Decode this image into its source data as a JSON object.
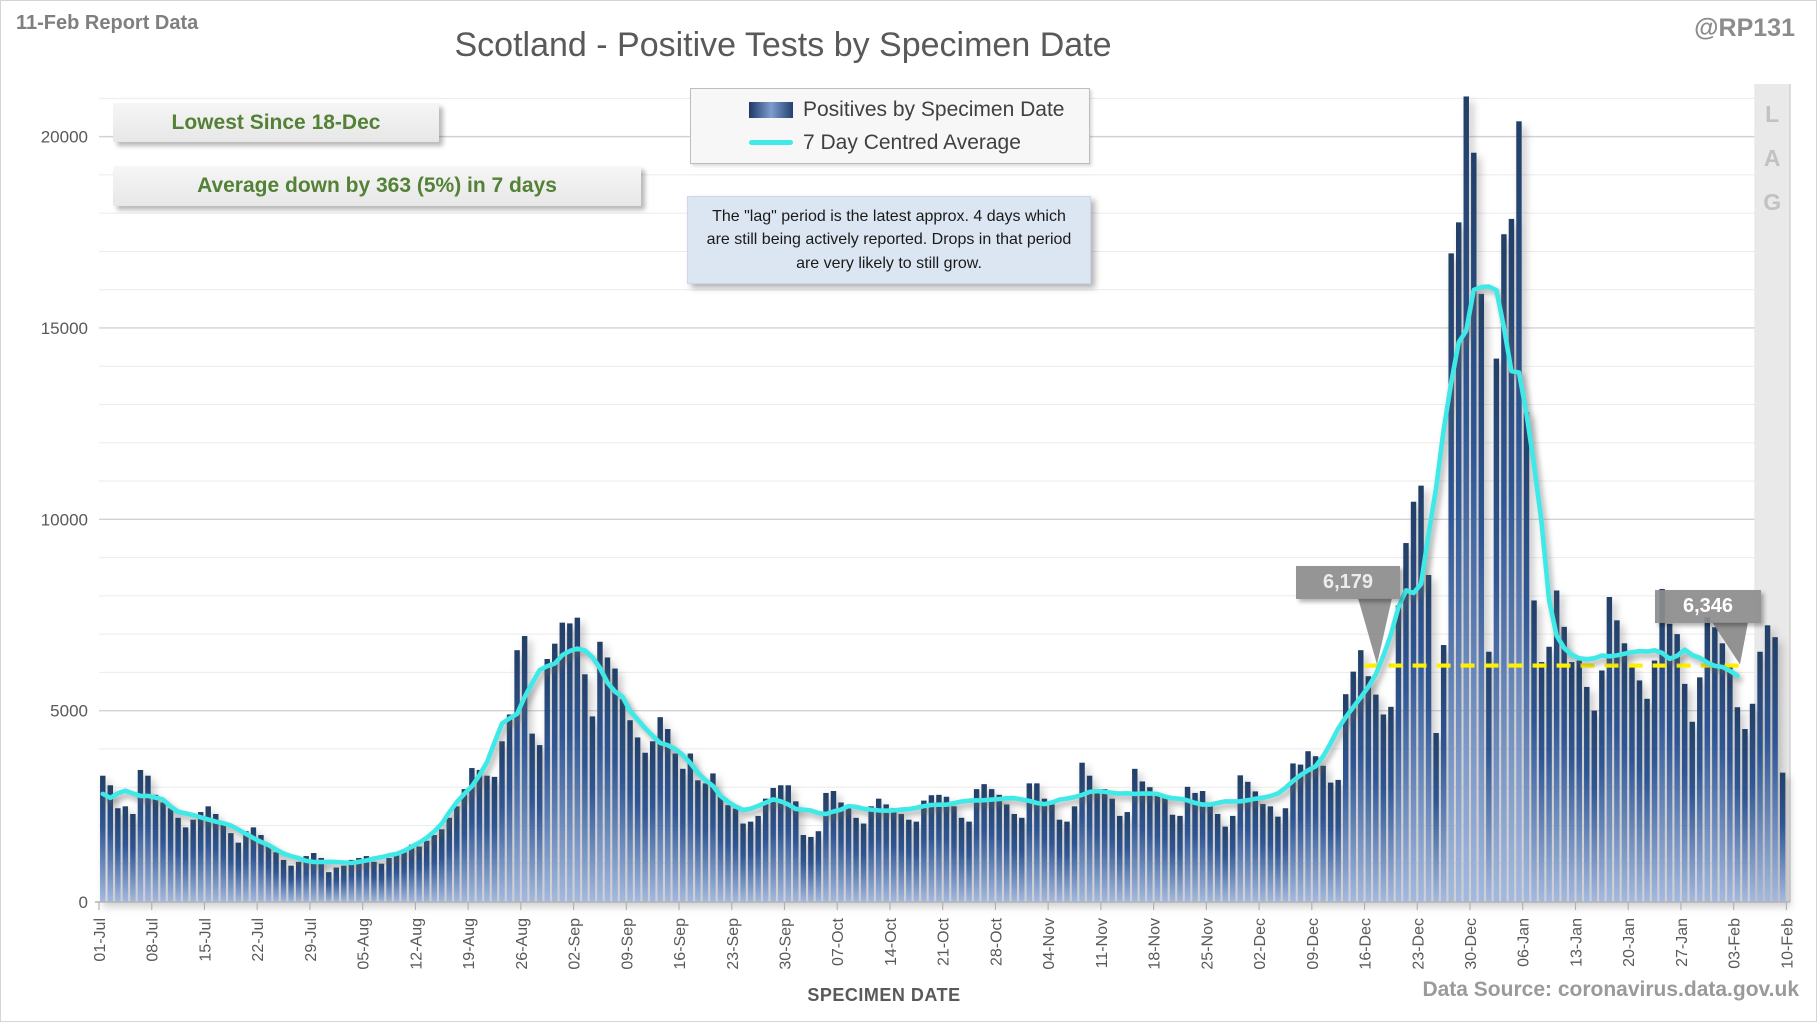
{
  "header": {
    "report_label": "11-Feb Report Data",
    "handle": "@RP131",
    "title": "Scotland - Positive Tests by Specimen Date"
  },
  "annotations": {
    "lowest": "Lowest Since 18-Dec",
    "average_change": "Average down by 363 (5%) in 7 days",
    "lag_note": "The \"lag\" period is the latest approx. 4 days which are still being actively reported. Drops in that period are very likely to still grow.",
    "dec_point_label": "6,179",
    "feb_point_label": "6,346",
    "lag_label": "LAG"
  },
  "legend": {
    "bars": "Positives by Specimen Date",
    "line": "7 Day Centred Average"
  },
  "footer": {
    "xlabel": "SPECIMEN DATE",
    "source": "Data Source: coronavirus.data.gov.uk"
  },
  "colors": {
    "bar_top": "#223f66",
    "bar_mid": "#2f5694",
    "bar_bottom": "#a3b9e0",
    "avg_line": "#3fe9e7",
    "reference_line": "#ffef00",
    "green_text": "#538135",
    "grid_minor": "#ebebeb",
    "grid_major": "#d3d3d3",
    "axis_text": "#595959",
    "lag_band": "#e9e9e9",
    "lag_text": "#c2c2c2",
    "callout_gray": "#8c8c8c"
  },
  "chart_data": {
    "type": "bar",
    "title": "Scotland - Positive Tests by Specimen Date",
    "xlabel": "SPECIMEN DATE",
    "ylabel": "",
    "start_date": "01-Jul",
    "end_date": "10-Feb",
    "ylim": [
      0,
      21480
    ],
    "y_ticks": [
      0,
      5000,
      10000,
      15000,
      20000
    ],
    "gridline_interval": 1000,
    "x_tick_labels": [
      "01-Jul",
      "08-Jul",
      "15-Jul",
      "22-Jul",
      "29-Jul",
      "05-Aug",
      "12-Aug",
      "19-Aug",
      "26-Aug",
      "02-Sep",
      "09-Sep",
      "16-Sep",
      "23-Sep",
      "30-Sep",
      "07-Oct",
      "14-Oct",
      "21-Oct",
      "28-Oct",
      "04-Nov",
      "11-Nov",
      "18-Nov",
      "25-Nov",
      "02-Dec",
      "09-Dec",
      "16-Dec",
      "23-Dec",
      "30-Dec",
      "06-Jan",
      "13-Jan",
      "20-Jan",
      "27-Jan",
      "03-Feb",
      "10-Feb"
    ],
    "series": [
      {
        "name": "Positives by Specimen Date",
        "type": "bar",
        "values": [
          3300,
          3050,
          2450,
          2500,
          2300,
          3450,
          3300,
          2800,
          2600,
          2450,
          2200,
          1950,
          2150,
          2350,
          2500,
          2300,
          2050,
          1800,
          1550,
          1850,
          1950,
          1750,
          1500,
          1300,
          1100,
          950,
          1050,
          1200,
          1280,
          1150,
          780,
          900,
          950,
          1100,
          1150,
          1200,
          1050,
          1000,
          1150,
          1300,
          1350,
          1500,
          1450,
          1600,
          1750,
          1900,
          2200,
          2500,
          2950,
          3500,
          3450,
          3300,
          3270,
          4200,
          4900,
          6580,
          6950,
          4400,
          4100,
          6350,
          6750,
          7300,
          7280,
          7430,
          5950,
          4850,
          6800,
          6390,
          6100,
          5300,
          4750,
          4300,
          3900,
          4200,
          4830,
          4520,
          3880,
          3480,
          3880,
          3180,
          3100,
          3360,
          2750,
          2530,
          2440,
          2050,
          2100,
          2250,
          2700,
          2980,
          3050,
          3050,
          2630,
          1750,
          1700,
          1850,
          2850,
          2900,
          2600,
          2450,
          2200,
          2050,
          2500,
          2700,
          2550,
          2450,
          2300,
          2150,
          2100,
          2650,
          2790,
          2800,
          2750,
          2500,
          2200,
          2100,
          2950,
          3080,
          2950,
          2800,
          2550,
          2300,
          2200,
          3100,
          3100,
          2700,
          2550,
          2150,
          2100,
          2500,
          3640,
          3300,
          2950,
          2950,
          2700,
          2250,
          2350,
          3480,
          3150,
          3000,
          2840,
          2750,
          2280,
          2250,
          3010,
          2850,
          2900,
          2540,
          2300,
          1970,
          2250,
          3310,
          3140,
          2890,
          2560,
          2500,
          2230,
          2450,
          3620,
          3590,
          3940,
          3810,
          3560,
          3120,
          3190,
          5430,
          6020,
          6580,
          5900,
          5420,
          4900,
          5100,
          7750,
          9380,
          10460,
          10880,
          8545,
          4416,
          6715,
          16950,
          17760,
          21050,
          19580,
          15890,
          6540,
          14200,
          17450,
          17850,
          20400,
          12800,
          7880,
          6270,
          6670,
          8140,
          7190,
          6270,
          6310,
          5620,
          5000,
          6050,
          7970,
          7360,
          6760,
          6180,
          5790,
          5310,
          6310,
          8180,
          7270,
          7000,
          5700,
          4710,
          5870,
          7440,
          7180,
          6760,
          6130,
          5090,
          4520,
          5180,
          6540,
          7230,
          6920,
          3380
        ]
      },
      {
        "name": "7 Day Centred Average",
        "type": "line",
        "derived": "7-day centred mean of bar values",
        "end_index": 217
      }
    ],
    "reference_line": {
      "value": 6179,
      "start_index": 168,
      "end_index": 218
    },
    "lag_band": {
      "start_index": 220
    }
  }
}
